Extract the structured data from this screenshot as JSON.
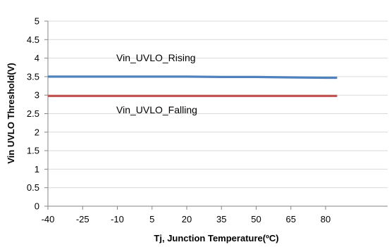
{
  "chart_data": {
    "type": "line",
    "title": "",
    "xlabel": "Tj, Junction Temperature(ºC)",
    "ylabel": "Vin UVLO Threshold(V)",
    "x_ticks": [
      "-40",
      "-25",
      "-10",
      "5",
      "20",
      "35",
      "50",
      "65",
      "80"
    ],
    "y_ticks": [
      "0",
      "0.5",
      "1",
      "1.5",
      "2",
      "2.5",
      "3",
      "3.5",
      "4",
      "4.5",
      "5"
    ],
    "xlim": [
      -40,
      85
    ],
    "ylim": [
      0,
      5
    ],
    "grid": "horizontal",
    "legend": "inline labels",
    "series": [
      {
        "name": "Vin_UVLO_Rising",
        "color": "#4f81bd",
        "x": [
          -40,
          -25,
          -10,
          5,
          20,
          35,
          50,
          65,
          80,
          85
        ],
        "y": [
          3.5,
          3.5,
          3.5,
          3.5,
          3.5,
          3.49,
          3.49,
          3.48,
          3.47,
          3.47
        ]
      },
      {
        "name": "Vin_UVLO_Falling",
        "color": "#c0504d",
        "x": [
          -40,
          -25,
          -10,
          5,
          20,
          35,
          50,
          65,
          80,
          85
        ],
        "y": [
          2.98,
          2.98,
          2.98,
          2.98,
          2.98,
          2.98,
          2.98,
          2.98,
          2.98,
          2.98
        ]
      }
    ]
  }
}
